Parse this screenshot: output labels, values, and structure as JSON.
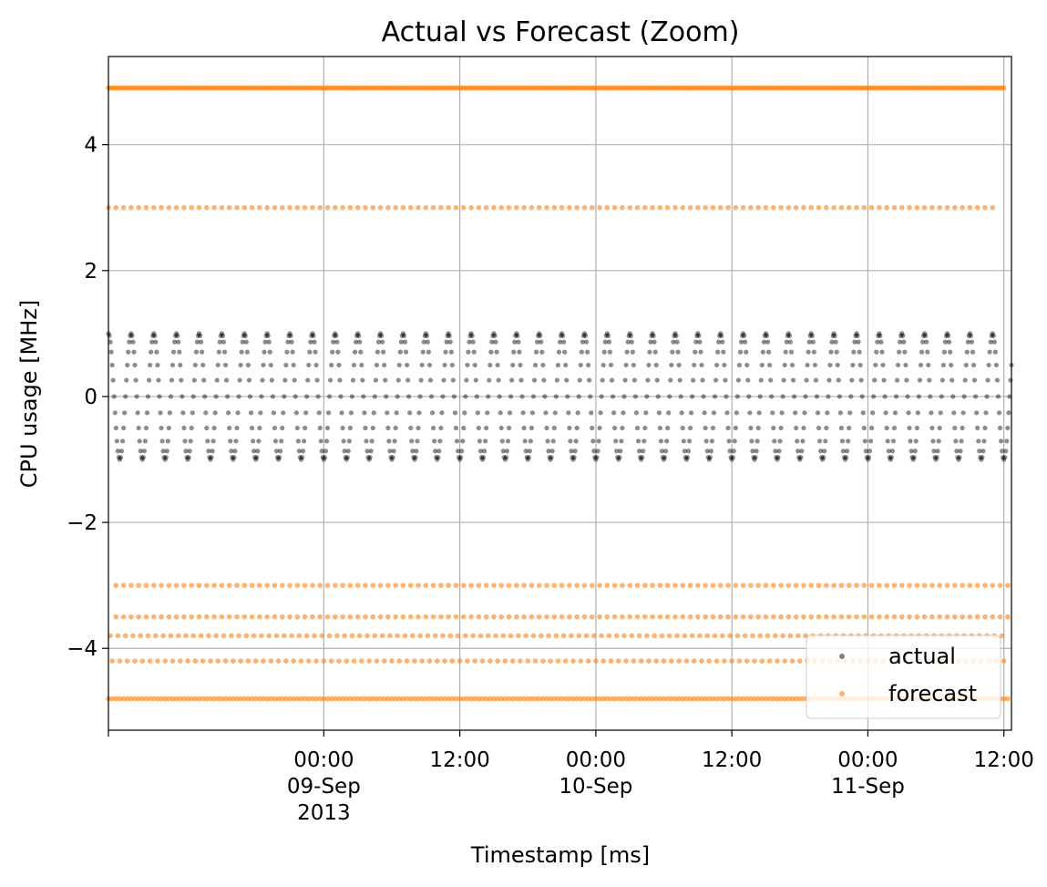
{
  "chart_data": {
    "type": "scatter",
    "title": "Actual vs Forecast (Zoom)",
    "xlabel": "Timestamp [ms]",
    "ylabel": "CPU usage [MHz]",
    "x_range": [
      "2013-09-08 05:00",
      "2013-09-11 12:40"
    ],
    "ylim": [
      -5.3,
      5.4
    ],
    "grid": true,
    "legend_placement": "lower right",
    "y_ticks": [
      {
        "value": -4,
        "label": "−4"
      },
      {
        "value": -2,
        "label": "−2"
      },
      {
        "value": 0,
        "label": "0"
      },
      {
        "value": 2,
        "label": "2"
      },
      {
        "value": 4,
        "label": "4"
      }
    ],
    "x_ticks": [
      {
        "time": "2013-09-09 00:00",
        "lines": [
          "00:00",
          "09-Sep",
          "2013"
        ]
      },
      {
        "time": "2013-09-09 12:00",
        "lines": [
          "12:00"
        ]
      },
      {
        "time": "2013-09-10 00:00",
        "lines": [
          "00:00",
          "10-Sep"
        ]
      },
      {
        "time": "2013-09-10 12:00",
        "lines": [
          "12:00"
        ]
      },
      {
        "time": "2013-09-11 00:00",
        "lines": [
          "00:00",
          "11-Sep"
        ]
      },
      {
        "time": "2013-09-11 12:00",
        "lines": [
          "12:00"
        ]
      }
    ],
    "series": [
      {
        "name": "actual",
        "color": "#000000",
        "pattern": "sine",
        "amplitude": 1.0,
        "period": "2h",
        "sample_interval": "5min",
        "start": "2013-09-08 05:00",
        "end": "2013-09-11 12:40"
      },
      {
        "name": "forecast",
        "color": "#ff7f0e",
        "levels": [
          {
            "y": 4.9,
            "start": "2013-09-08 05:00",
            "end": "2013-09-11 12:00",
            "interval": "10min"
          },
          {
            "y": 3.0,
            "start": "2013-09-08 05:00",
            "end": "2013-09-11 11:00",
            "interval": "40min"
          },
          {
            "y": -3.0,
            "start": "2013-09-08 05:40",
            "end": "2013-09-11 12:20",
            "interval": "40min"
          },
          {
            "y": -3.5,
            "start": "2013-09-08 05:40",
            "end": "2013-09-11 12:20",
            "interval": "40min"
          },
          {
            "y": -3.8,
            "start": "2013-09-08 05:10",
            "end": "2013-09-11 12:20",
            "interval": "40min"
          },
          {
            "y": -4.2,
            "start": "2013-09-08 05:20",
            "end": "2013-09-11 12:20",
            "interval": "40min"
          },
          {
            "y": -4.8,
            "start": "2013-09-08 05:00",
            "end": "2013-09-11 12:20",
            "interval": "20min"
          }
        ]
      }
    ]
  }
}
